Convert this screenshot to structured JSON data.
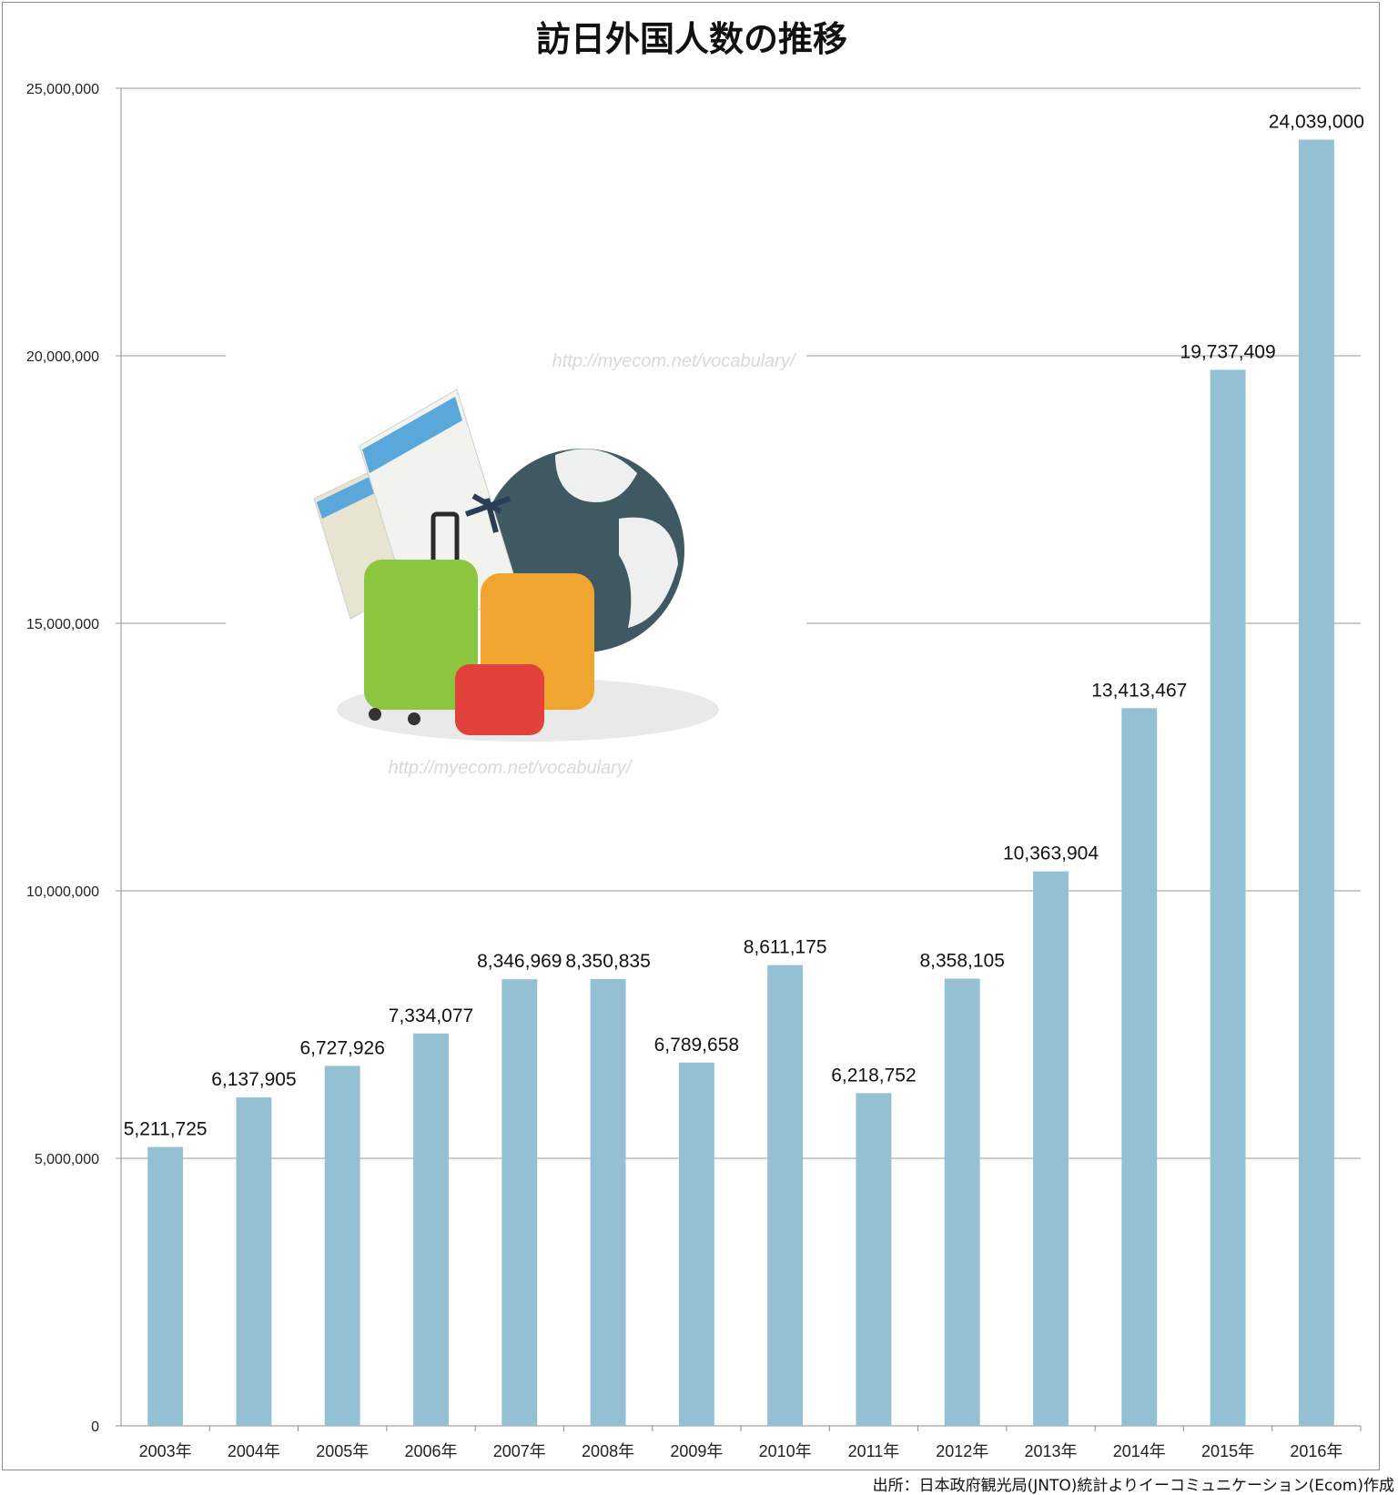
{
  "chart_data": {
    "type": "bar",
    "title": "訪日外国人数の推移",
    "categories": [
      "2003年",
      "2004年",
      "2005年",
      "2006年",
      "2007年",
      "2008年",
      "2009年",
      "2010年",
      "2011年",
      "2012年",
      "2013年",
      "2014年",
      "2015年",
      "2016年"
    ],
    "values": [
      5211725,
      6137905,
      6727926,
      7334077,
      8346969,
      8350835,
      6789658,
      8611175,
      6218752,
      8358105,
      10363904,
      13413467,
      19737409,
      24039000
    ],
    "data_labels": [
      "5,211,725",
      "6,137,905",
      "6,727,926",
      "7,334,077",
      "8,346,969",
      "8,350,835",
      "6,789,658",
      "8,611,175",
      "6,218,752",
      "8,358,105",
      "10,363,904",
      "13,413,467",
      "19,737,409",
      "24,039,000"
    ],
    "y_ticks": [
      "0",
      "5,000,000",
      "10,000,000",
      "15,000,000",
      "20,000,000",
      "25,000,000"
    ],
    "ylim": [
      0,
      25000000
    ],
    "xlabel": "",
    "ylabel": "",
    "grid": true,
    "legend": "none",
    "bar_color": "#93c1d3"
  },
  "watermark": "http://myecom.net/vocabulary/",
  "source_note": "出所：日本政府観光局(JNTO)統計よりイーコミュニケーション(Ecom)作成"
}
